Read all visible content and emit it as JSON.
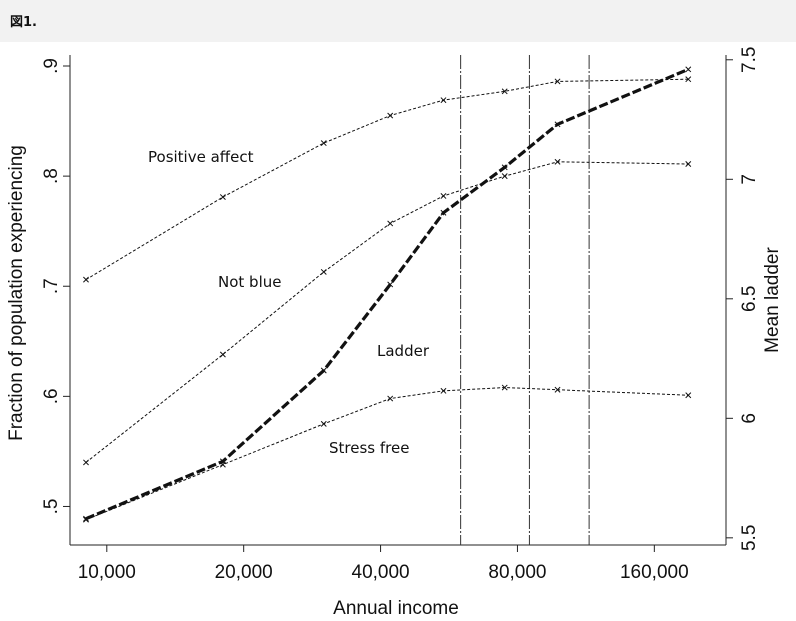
{
  "figure": {
    "title": "図1."
  },
  "chart_data": {
    "type": "line",
    "xlabel": "Annual income",
    "ylabel_left": "Fraction of population experiencing",
    "ylabel_right": "Mean ladder",
    "x_scale": "log",
    "x_ticks": [
      {
        "value": 10000,
        "label": "10,000"
      },
      {
        "value": 20000,
        "label": "20,000"
      },
      {
        "value": 40000,
        "label": "40,000"
      },
      {
        "value": 80000,
        "label": "80,000"
      },
      {
        "value": 160000,
        "label": "160,000"
      }
    ],
    "xlim": [
      8300,
      230000
    ],
    "y_left_ticks": [
      {
        "value": 0.5,
        "label": ".5"
      },
      {
        "value": 0.6,
        "label": ".6"
      },
      {
        "value": 0.7,
        "label": ".7"
      },
      {
        "value": 0.8,
        "label": ".8"
      },
      {
        "value": 0.9,
        "label": ".9"
      }
    ],
    "ylim_left": [
      0.465,
      0.91
    ],
    "y_right_ticks": [
      {
        "value": 5.5,
        "label": "5.5"
      },
      {
        "value": 6,
        "label": "6"
      },
      {
        "value": 6.5,
        "label": "6.5"
      },
      {
        "value": 7,
        "label": "7"
      },
      {
        "value": 7.5,
        "label": "7.5"
      }
    ],
    "ylim_right": [
      5.47,
      7.52
    ],
    "vertical_lines": [
      60000,
      85000,
      115000
    ],
    "series": [
      {
        "name": "Positive affect",
        "axis": "left",
        "style": "thin-dotted",
        "x": [
          9000,
          18000,
          30000,
          42000,
          55000,
          75000,
          98000,
          190000
        ],
        "y": [
          0.706,
          0.781,
          0.83,
          0.855,
          0.869,
          0.877,
          0.886,
          0.888
        ]
      },
      {
        "name": "Not blue",
        "axis": "left",
        "style": "thin-dotted",
        "x": [
          9000,
          18000,
          30000,
          42000,
          55000,
          75000,
          98000,
          190000
        ],
        "y": [
          0.54,
          0.638,
          0.713,
          0.757,
          0.782,
          0.8,
          0.813,
          0.811
        ]
      },
      {
        "name": "Stress free",
        "axis": "left",
        "style": "thin-dotted",
        "x": [
          9000,
          18000,
          30000,
          42000,
          55000,
          75000,
          98000,
          190000
        ],
        "y": [
          0.488,
          0.538,
          0.575,
          0.598,
          0.605,
          0.608,
          0.606,
          0.601
        ]
      },
      {
        "name": "Ladder",
        "axis": "right",
        "style": "thick-dashed",
        "x": [
          9000,
          18000,
          30000,
          42000,
          55000,
          75000,
          98000,
          190000
        ],
        "y": [
          5.58,
          5.82,
          6.2,
          6.56,
          6.86,
          7.05,
          7.23,
          7.46
        ]
      }
    ],
    "thin_dotted_start_x": 9000
  }
}
